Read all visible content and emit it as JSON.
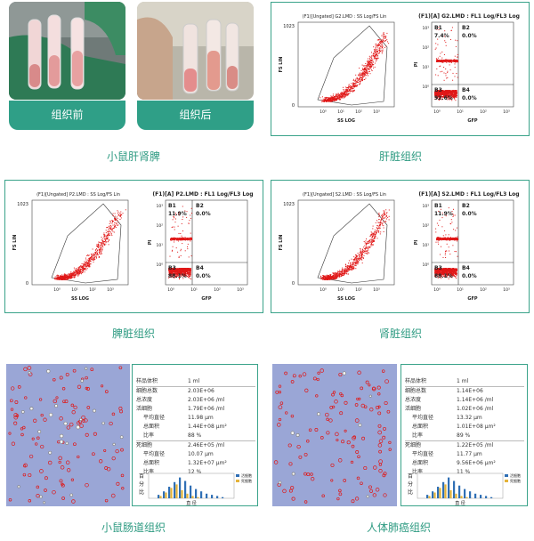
{
  "top_left": {
    "before_label": "组织前",
    "after_label": "组织后",
    "caption": "小鼠肝肾脾"
  },
  "panels": [
    {
      "caption": "肝脏组织",
      "scatter_title": "(F1)[Ungated] G2.LMD : SS Log/FS Lin",
      "quad_title": "(F1)[A] G2.LMD : FL1 Log/FL3 Log",
      "b1": "B1",
      "b1_val": "7.4%",
      "b2": "B2",
      "b2_val": "0.0%",
      "b3": "B3",
      "b3_val": "92.6%",
      "b4": "B4",
      "b4_val": "0.0%"
    },
    {
      "caption": "脾脏组织",
      "scatter_title": "(F1)[Ungated] P2.LMD : SS Log/FS Lin",
      "quad_title": "(F1)[A] P2.LMD : FL1 Log/FL3 Log",
      "b1": "B1",
      "b1_val": "11.9%",
      "b2": "B2",
      "b2_val": "0.0%",
      "b3": "B3",
      "b3_val": "88.1%",
      "b4": "B4",
      "b4_val": "0.0%"
    },
    {
      "caption": "肾脏组织",
      "scatter_title": "(F1)[Ungated] S2.LMD : SS Log/FS Lin",
      "quad_title": "(F1)[A] S2.LMD : FL1 Log/FL3 Log",
      "b1": "B1",
      "b1_val": "11.9%",
      "b2": "B2",
      "b2_val": "0.0%",
      "b3": "B3",
      "b3_val": "88.1%",
      "b4": "B4",
      "b4_val": "0.0%"
    }
  ],
  "axes": {
    "fs_lin": "FS LIN",
    "ss_log": "SS LOG",
    "pi": "PI",
    "gfp": "GFP",
    "y_top": "1023",
    "zero": "0",
    "d0": "10⁰",
    "d1": "10¹",
    "d2": "10²",
    "d3": "10³"
  },
  "counters": [
    {
      "caption": "小鼠肠道组织",
      "rows": [
        {
          "k": "样品体积",
          "v": "1 ml"
        },
        {
          "k": "细胞总数",
          "v": "2.03E+06"
        },
        {
          "k": "总浓度",
          "v": "2.03E+06 /ml"
        },
        {
          "k": "活细胞",
          "v": "1.79E+06 /ml"
        },
        {
          "k": "平均直径",
          "v": "11.98 µm",
          "sub": true
        },
        {
          "k": "总面积",
          "v": "1.44E+08 µm²",
          "sub": true
        },
        {
          "k": "比率",
          "v": "88 %",
          "sub": true
        },
        {
          "k": "死细胞",
          "v": "2.46E+05 /ml"
        },
        {
          "k": "平均直径",
          "v": "10.07 µm",
          "sub": true
        },
        {
          "k": "总面积",
          "v": "1.32E+07 µm²",
          "sub": true
        },
        {
          "k": "比率",
          "v": "12 %",
          "sub": true
        }
      ],
      "hist_ylabel": "百分比",
      "hist_xlabel": "直 径",
      "legend_live": "活细胞",
      "legend_dead": "死细胞",
      "colors": {
        "live": "#2f6fb5",
        "dead": "#e5b43a"
      }
    },
    {
      "caption": "人体肺癌组织",
      "rows": [
        {
          "k": "样品体积",
          "v": "1 ml"
        },
        {
          "k": "细胞总数",
          "v": "1.14E+06"
        },
        {
          "k": "总浓度",
          "v": "1.14E+06 /ml"
        },
        {
          "k": "活细胞",
          "v": "1.02E+06 /ml"
        },
        {
          "k": "平均直径",
          "v": "13.32 µm",
          "sub": true
        },
        {
          "k": "总面积",
          "v": "1.01E+08 µm²",
          "sub": true
        },
        {
          "k": "比率",
          "v": "89 %",
          "sub": true
        },
        {
          "k": "死细胞",
          "v": "1.22E+05 /ml"
        },
        {
          "k": "平均直径",
          "v": "11.77 µm",
          "sub": true
        },
        {
          "k": "总面积",
          "v": "9.56E+06 µm²",
          "sub": true
        },
        {
          "k": "比率",
          "v": "11 %",
          "sub": true
        }
      ],
      "hist_ylabel": "百分比",
      "hist_xlabel": "直 径",
      "legend_live": "活细胞",
      "legend_dead": "死细胞",
      "colors": {
        "live": "#2f6fb5",
        "dead": "#e5b43a"
      }
    }
  ],
  "colors": {
    "teal": "#2e9b82",
    "dots": "#e01818",
    "micro_bg": "#9aa6d6"
  }
}
